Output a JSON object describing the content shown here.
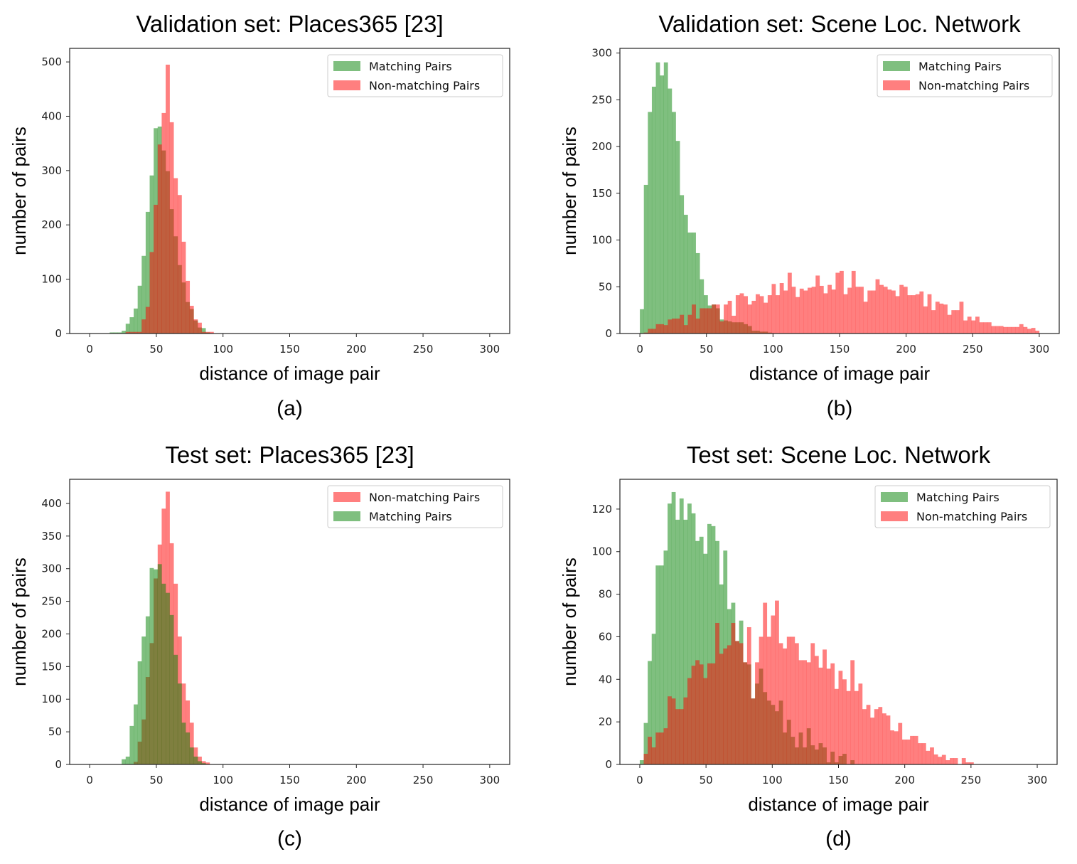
{
  "chart_data": [
    {
      "type": "bar",
      "histogram": true,
      "title": "Validation set: Places365 [23]",
      "xlabel": "distance of image pair",
      "ylabel": "number of pairs",
      "caption": "(a)",
      "xlim": [
        -15,
        315
      ],
      "ylim": [
        0,
        525
      ],
      "xticks": [
        0,
        50,
        100,
        150,
        200,
        250,
        300
      ],
      "yticks": [
        0,
        100,
        200,
        300,
        400,
        500
      ],
      "grid": false,
      "legend": "top-right",
      "bin_start": 15,
      "bin_width": 3,
      "series": [
        {
          "name": "Matching Pairs",
          "color": "#008000",
          "opacity": 0.5,
          "values": [
            2,
            2,
            2,
            5,
            18,
            30,
            46,
            88,
            143,
            224,
            291,
            378,
            381,
            337,
            299,
            229,
            179,
            126,
            94,
            58,
            45,
            24,
            11,
            10,
            2,
            0
          ]
        },
        {
          "name": "Non-matching Pairs",
          "color": "#ff0000",
          "opacity": 0.5,
          "values": [
            0,
            0,
            0,
            0,
            3,
            3,
            3,
            3,
            26,
            49,
            150,
            237,
            348,
            406,
            495,
            389,
            286,
            255,
            169,
            97,
            51,
            26,
            20,
            3,
            3,
            3
          ]
        }
      ],
      "legend_order": [
        0,
        1
      ],
      "draw_order": [
        0,
        1
      ]
    },
    {
      "type": "bar",
      "histogram": true,
      "title": "Validation set: Scene Loc. Network",
      "xlabel": "distance of image pair",
      "ylabel": "number of pairs",
      "caption": "(b)",
      "xlim": [
        -15,
        315
      ],
      "ylim": [
        0,
        305
      ],
      "xticks": [
        0,
        50,
        100,
        150,
        200,
        250,
        300
      ],
      "yticks": [
        0,
        50,
        100,
        150,
        200,
        250,
        300
      ],
      "grid": false,
      "legend": "top-right",
      "bin_start": 0,
      "bin_width": 3,
      "series": [
        {
          "name": "Matching Pairs",
          "color": "#008000",
          "opacity": 0.5,
          "values": [
            26,
            159,
            237,
            264,
            290,
            276,
            290,
            262,
            237,
            206,
            148,
            127,
            108,
            108,
            86,
            58,
            41,
            30,
            31,
            27,
            15,
            14,
            13,
            12,
            12,
            12,
            10,
            8,
            3,
            3,
            2,
            2,
            1,
            0
          ]
        },
        {
          "name": "Non-matching Pairs",
          "color": "#ff0000",
          "opacity": 0.5,
          "values": [
            0,
            1,
            5,
            5,
            10,
            10,
            9,
            15,
            16,
            16,
            20,
            9,
            20,
            31,
            16,
            27,
            27,
            27,
            31,
            31,
            13,
            31,
            35,
            19,
            41,
            43,
            40,
            31,
            35,
            42,
            40,
            33,
            41,
            53,
            41,
            54,
            46,
            65,
            50,
            39,
            48,
            46,
            49,
            50,
            62,
            51,
            43,
            52,
            47,
            65,
            67,
            42,
            49,
            67,
            50,
            50,
            34,
            46,
            46,
            58,
            52,
            50,
            47,
            46,
            40,
            52,
            50,
            41,
            41,
            42,
            45,
            29,
            42,
            25,
            34,
            32,
            31,
            20,
            25,
            25,
            34,
            14,
            18,
            14,
            18,
            12,
            12,
            12,
            8,
            8,
            8,
            7,
            7,
            7,
            7,
            10,
            7,
            5,
            6,
            3
          ]
        }
      ],
      "legend_order": [
        0,
        1
      ],
      "draw_order": [
        0,
        1
      ]
    },
    {
      "type": "bar",
      "histogram": true,
      "title": "Test set: Places365 [23]",
      "xlabel": "distance of image pair",
      "ylabel": "number of pairs",
      "caption": "(c)",
      "xlim": [
        -15,
        315
      ],
      "ylim": [
        0,
        437
      ],
      "xticks": [
        0,
        50,
        100,
        150,
        200,
        250,
        300
      ],
      "yticks": [
        0,
        50,
        100,
        150,
        200,
        250,
        300,
        350,
        400
      ],
      "grid": false,
      "legend": "top-right",
      "bin_start": 24,
      "bin_width": 3,
      "series": [
        {
          "name": "Matching Pairs",
          "color": "#008000",
          "opacity": 0.5,
          "values": [
            8,
            12,
            59,
            92,
            158,
            196,
            227,
            301,
            299,
            307,
            277,
            263,
            229,
            168,
            124,
            64,
            49,
            26,
            12,
            5,
            2,
            0
          ]
        },
        {
          "name": "Non-matching Pairs",
          "color": "#ff0000",
          "opacity": 0.5,
          "values": [
            0,
            0,
            0,
            4,
            35,
            69,
            134,
            186,
            285,
            337,
            392,
            418,
            339,
            277,
            196,
            124,
            98,
            64,
            26,
            12,
            5,
            3
          ]
        }
      ],
      "legend_order": [
        1,
        0
      ],
      "draw_order": [
        1,
        0
      ]
    },
    {
      "type": "bar",
      "histogram": true,
      "title": "Test set: Scene Loc. Network",
      "xlabel": "distance of image pair",
      "ylabel": "number of pairs",
      "caption": "(d)",
      "xlim": [
        -15,
        315
      ],
      "ylim": [
        0,
        134
      ],
      "xticks": [
        0,
        50,
        100,
        150,
        200,
        250,
        300
      ],
      "yticks": [
        0,
        20,
        40,
        60,
        80,
        100,
        120
      ],
      "grid": false,
      "legend": "top-right",
      "bin_start": 0,
      "bin_width": 3,
      "series": [
        {
          "name": "Matching Pairs",
          "color": "#008000",
          "opacity": 0.5,
          "values": [
            2,
            19.5,
            48.6,
            61.4,
            93.5,
            93.5,
            100.5,
            122.6,
            128,
            115,
            125,
            115,
            122.6,
            118,
            105,
            107,
            99,
            113,
            112,
            105,
            84.6,
            100.5,
            73,
            76,
            58,
            67.6,
            48,
            47,
            31,
            38,
            45,
            34,
            30,
            28,
            25,
            30,
            15,
            21,
            13,
            8,
            15,
            8,
            17,
            9,
            7,
            10,
            8,
            1,
            6,
            1,
            4,
            5,
            0,
            2
          ]
        },
        {
          "name": "Non-matching Pairs",
          "color": "#ff0000",
          "opacity": 0.5,
          "values": [
            0,
            5,
            13,
            8,
            15,
            15,
            17,
            32,
            31,
            26,
            26,
            31.5,
            40.6,
            46.4,
            49,
            47,
            40.6,
            47.5,
            47.5,
            66.5,
            52,
            54.5,
            56,
            66.5,
            58,
            57,
            48,
            64.5,
            31,
            48,
            60,
            76,
            60,
            70,
            77,
            57,
            54.5,
            60,
            60,
            57,
            49,
            49,
            48,
            57,
            51,
            45.5,
            54,
            45,
            47.5,
            35.5,
            44,
            40,
            34.5,
            49,
            34.5,
            38,
            26,
            28,
            22,
            26,
            27,
            24,
            23,
            16,
            15.6,
            19.5,
            11.7,
            11.7,
            13.4,
            13.4,
            10,
            10,
            6.4,
            8,
            4.7,
            3.6,
            4.5,
            2,
            3,
            3,
            0,
            3,
            1,
            1
          ]
        }
      ],
      "legend_order": [
        0,
        1
      ],
      "draw_order": [
        0,
        1
      ]
    }
  ]
}
